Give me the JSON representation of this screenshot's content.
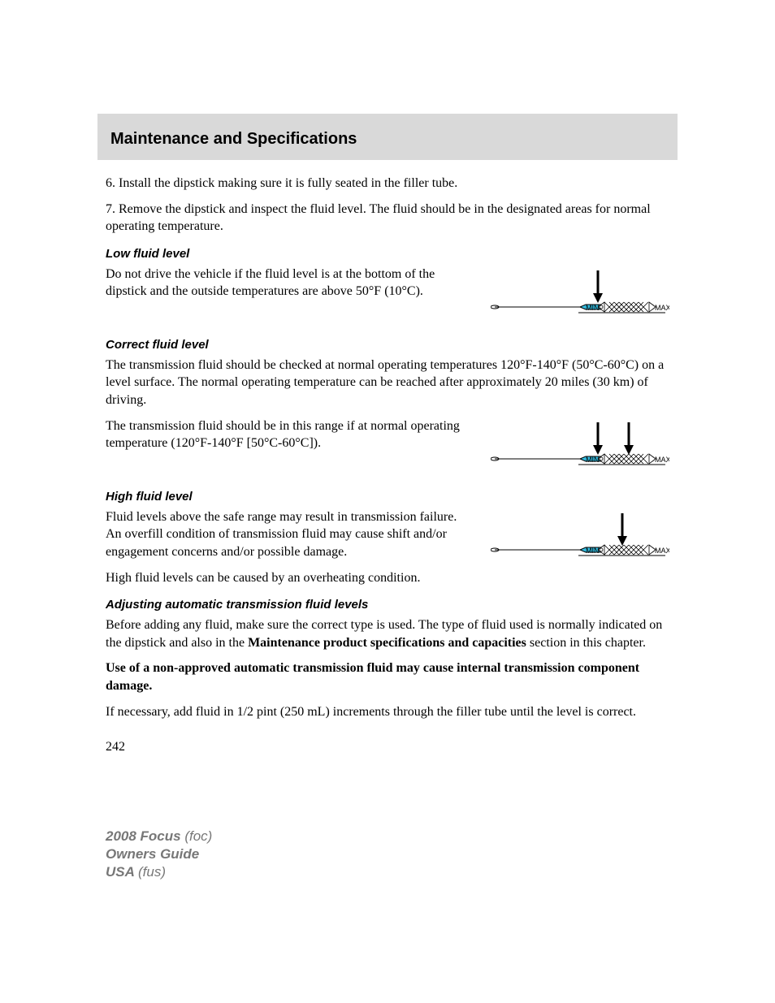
{
  "header": {
    "title": "Maintenance and Specifications"
  },
  "para6": "6. Install the dipstick making sure it is fully seated in the filler tube.",
  "para7": "7. Remove the dipstick and inspect the fluid level. The fluid should be in the designated areas for normal operating temperature.",
  "low": {
    "heading": "Low fluid level",
    "text": "Do not drive the vehicle if the fluid level is at the bottom of the dipstick and the outside temperatures are above 50°F (10°C)."
  },
  "correct": {
    "heading": "Correct fluid level",
    "text1": "The transmission fluid should be checked at normal operating temperatures 120°F-140°F (50°C-60°C) on a level surface. The normal operating temperature can be reached after approximately 20 miles (30 km) of driving.",
    "text2": "The transmission fluid should be in this range if at normal operating temperature (120°F-140°F [50°C-60°C])."
  },
  "high": {
    "heading": "High fluid level",
    "text1": "Fluid levels above the safe range may result in transmission failure. An overfill condition of transmission fluid may cause shift and/or engagement concerns and/or possible damage.",
    "text2": "High fluid levels can be caused by an overheating condition."
  },
  "adjust": {
    "heading": "Adjusting automatic transmission fluid levels",
    "text1_pre": "Before adding any fluid, make sure the correct type is used. The type of fluid used is normally indicated on the dipstick and also in the ",
    "text1_bold": "Maintenance product specifications and capacities",
    "text1_post": " section in this chapter.",
    "warn": "Use of a non-approved automatic transmission fluid may cause internal transmission component damage.",
    "text2": "If necessary, add fluid in 1/2 pint (250 mL) increments through the filler tube until the level is correct."
  },
  "pageNumber": "242",
  "footer": {
    "l1b": "2008 Focus ",
    "l1i": "(foc)",
    "l2b": "Owners Guide",
    "l3b": "USA ",
    "l3i": "(fus)"
  },
  "dipstick": {
    "min": "MIN",
    "max": "MAX",
    "fill_color": "#33bde0",
    "stroke_color": "#000000",
    "label_fontsize": 9,
    "arrow_width": 3,
    "cross_w": 55,
    "figures": {
      "low": {
        "arrows": [
          132
        ]
      },
      "correct": {
        "arrows": [
          132,
          170
        ]
      },
      "high": {
        "arrows": [
          162
        ]
      }
    }
  }
}
